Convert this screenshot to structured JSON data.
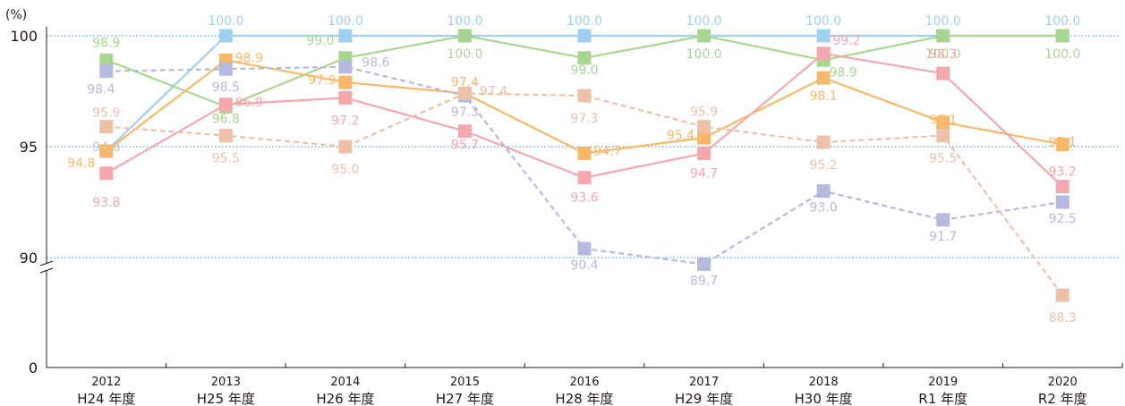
{
  "chart_data": {
    "type": "line",
    "unit_label": "(%)",
    "categories": [
      "2012",
      "2013",
      "2014",
      "2015",
      "2016",
      "2017",
      "2018",
      "2019",
      "2020"
    ],
    "category_sublabels": [
      "H24 年度",
      "H25 年度",
      "H26 年度",
      "H27 年度",
      "H28 年度",
      "H29 年度",
      "H30 年度",
      "R1 年度",
      "R2 年度"
    ],
    "y_ticks": [
      "0",
      "90",
      "95",
      "100"
    ],
    "ylim": [
      85,
      100
    ],
    "grid": true,
    "axis_break": true,
    "series": [
      {
        "values": [
          94.8,
          100.0,
          100.0,
          100.0,
          100.0,
          100.0,
          100.0,
          100.0,
          100.0
        ],
        "labels": [
          "94.8",
          "100.0",
          "100.0",
          "100.0",
          "100.0",
          "100.0",
          "100.0",
          "100.0",
          "100.0"
        ],
        "color": "#9fcfee",
        "dashed": false
      },
      {
        "values": [
          98.9,
          96.8,
          99.0,
          100.0,
          99.0,
          100.0,
          98.9,
          100.0,
          100.0
        ],
        "labels": [
          "98.9",
          "96.8",
          "99.0",
          "100.0",
          "99.0",
          "100.0",
          "98.9",
          "100.0",
          "100.0"
        ],
        "color": "#a8d690",
        "dashed": false
      },
      {
        "values": [
          94.8,
          98.9,
          97.9,
          97.4,
          94.7,
          95.4,
          98.1,
          96.1,
          95.1
        ],
        "labels": [
          "94.8",
          "98.9",
          "97.9",
          "97.4",
          "94.7",
          "95.4",
          "98.1",
          "96.1",
          "95.1"
        ],
        "color": "#f6b86a",
        "dashed": false
      },
      {
        "values": [
          93.8,
          96.9,
          97.2,
          95.7,
          93.6,
          94.7,
          99.2,
          98.3,
          93.2
        ],
        "labels": [
          "93.8",
          "96.9",
          "97.2",
          "95.7",
          "93.6",
          "94.7",
          "99.2",
          "98.3",
          "93.2"
        ],
        "color": "#f4a7ad",
        "dashed": false
      },
      {
        "values": [
          98.4,
          98.5,
          98.6,
          97.3,
          90.4,
          89.7,
          93.0,
          91.7,
          92.5
        ],
        "labels": [
          "98.4",
          "98.5",
          "98.6",
          "97.3",
          "90.4",
          "89.7",
          "93.0",
          "91.7",
          "92.5"
        ],
        "color": "#b5b9de",
        "dashed": true
      },
      {
        "values": [
          95.9,
          95.5,
          95.0,
          97.4,
          97.3,
          95.9,
          95.2,
          95.5,
          88.3
        ],
        "labels": [
          "95.9",
          "95.5",
          "95.0",
          "97.4",
          "97.3",
          "95.9",
          "95.2",
          "95.5",
          "88.3"
        ],
        "color": "#efc0a8",
        "dashed": true
      }
    ]
  }
}
